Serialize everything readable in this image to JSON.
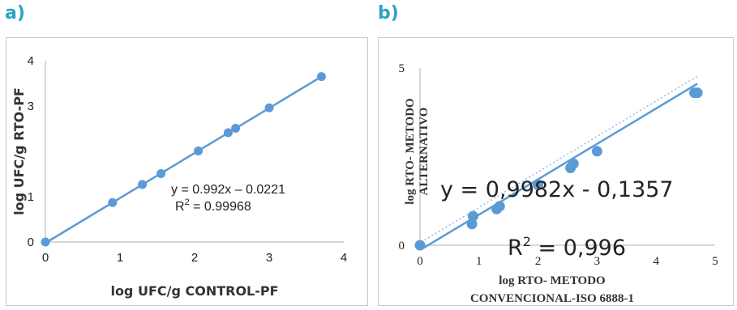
{
  "panels": [
    {
      "label": "a)"
    },
    {
      "label": "b)"
    }
  ],
  "chart_data": [
    {
      "type": "scatter",
      "xlabel": "log UFC/g CONTROL-PF",
      "ylabel": "log UFC/g RTO-PF",
      "xlim": [
        0,
        4
      ],
      "ylim": [
        0,
        4
      ],
      "xticks": [
        "0",
        "1",
        "2",
        "3",
        "4"
      ],
      "yticks": [
        "0",
        "1",
        "3",
        "4"
      ],
      "grid": false,
      "color": "#5b9bd5",
      "series": [
        {
          "x": [
            0,
            0.9,
            1.3,
            1.55,
            2.05,
            2.45,
            2.55,
            3.0,
            3.7
          ],
          "y": [
            0,
            0.87,
            1.27,
            1.51,
            2.01,
            2.41,
            2.51,
            2.96,
            3.65
          ]
        }
      ],
      "trendline": {
        "slope": 0.992,
        "intercept": -0.0221
      },
      "annotation": {
        "equation": "y = 0.992x – 0.0221",
        "r2_prefix": "R",
        "r2_sup": "2",
        "r2_value": " = 0.99968"
      }
    },
    {
      "type": "scatter",
      "xlabel_line1": "log RTO- METODO",
      "xlabel_line2": "CONVENCIONAL-ISO 6888-1",
      "ylabel_line1": "log RTO- METODO",
      "ylabel_line2": "ALTERNATIVO",
      "xlim": [
        0,
        5
      ],
      "ylim": [
        0,
        5
      ],
      "xticks": [
        "0",
        "1",
        "2",
        "3",
        "4",
        "5"
      ],
      "yticks": [
        "0",
        "5"
      ],
      "grid": false,
      "color": "#5b9bd5",
      "series": [
        {
          "x": [
            0,
            0.88,
            0.9,
            1.3,
            1.35,
            2.0,
            2.55,
            2.6,
            3.0,
            4.65,
            4.7
          ],
          "y": [
            0,
            0.6,
            0.82,
            1.02,
            1.1,
            1.7,
            2.18,
            2.3,
            2.65,
            4.3,
            4.3
          ]
        }
      ],
      "trendline": {
        "slope": 0.9982,
        "intercept": -0.1357
      },
      "annotation": {
        "equation": "y = 0,9982x - 0,1357",
        "r2_prefix": "R",
        "r2_sup": "2",
        "r2_value": " = 0,996"
      }
    }
  ]
}
